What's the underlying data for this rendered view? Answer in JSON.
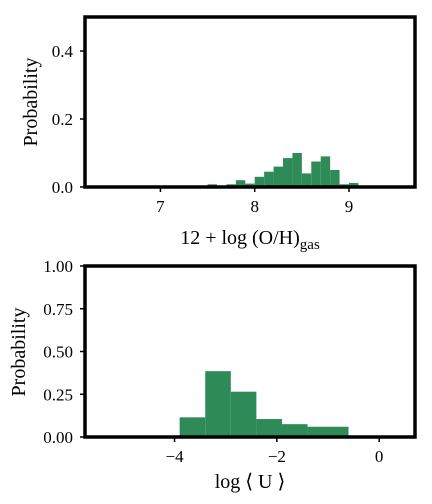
{
  "chart_data": [
    {
      "type": "bar",
      "histogram": true,
      "xlabel_main": "12 + log (O/H)",
      "xlabel_sub": "gas",
      "ylabel": "Probability",
      "xlim": [
        6.2,
        9.7
      ],
      "ylim": [
        0,
        0.5
      ],
      "xticks": [
        "7",
        "8",
        "9"
      ],
      "yticks": [
        "0.0",
        "0.2",
        "0.4"
      ],
      "bar_color": "#2e8b57",
      "bin_width": 0.1,
      "bins": [
        {
          "x": 7.55,
          "value": 0.008
        },
        {
          "x": 7.75,
          "value": 0.008
        },
        {
          "x": 7.85,
          "value": 0.02
        },
        {
          "x": 7.95,
          "value": 0.01
        },
        {
          "x": 8.05,
          "value": 0.03
        },
        {
          "x": 8.15,
          "value": 0.045
        },
        {
          "x": 8.25,
          "value": 0.06
        },
        {
          "x": 8.35,
          "value": 0.085
        },
        {
          "x": 8.45,
          "value": 0.1
        },
        {
          "x": 8.55,
          "value": 0.04
        },
        {
          "x": 8.65,
          "value": 0.075
        },
        {
          "x": 8.75,
          "value": 0.09
        },
        {
          "x": 8.85,
          "value": 0.05
        },
        {
          "x": 8.95,
          "value": 0.008
        },
        {
          "x": 9.05,
          "value": 0.012
        }
      ]
    },
    {
      "type": "bar",
      "histogram": true,
      "xlabel": "log ⟨ U ⟩",
      "ylabel": "Probability",
      "xlim": [
        -5.75,
        0.7
      ],
      "ylim": [
        0,
        1.0
      ],
      "xticks": [
        "−4",
        "−2",
        "0"
      ],
      "yticks": [
        "0.00",
        "0.25",
        "0.50",
        "0.75",
        "1.00"
      ],
      "bar_color": "#2e8b57",
      "bins": [
        {
          "x0": -3.9,
          "x1": -3.4,
          "value": 0.115
        },
        {
          "x0": -3.4,
          "x1": -2.9,
          "value": 0.385
        },
        {
          "x0": -2.9,
          "x1": -2.4,
          "value": 0.265
        },
        {
          "x0": -2.4,
          "x1": -1.9,
          "value": 0.105
        },
        {
          "x0": -1.9,
          "x1": -1.4,
          "value": 0.075
        },
        {
          "x0": -1.4,
          "x1": -0.6,
          "value": 0.06
        }
      ]
    }
  ]
}
